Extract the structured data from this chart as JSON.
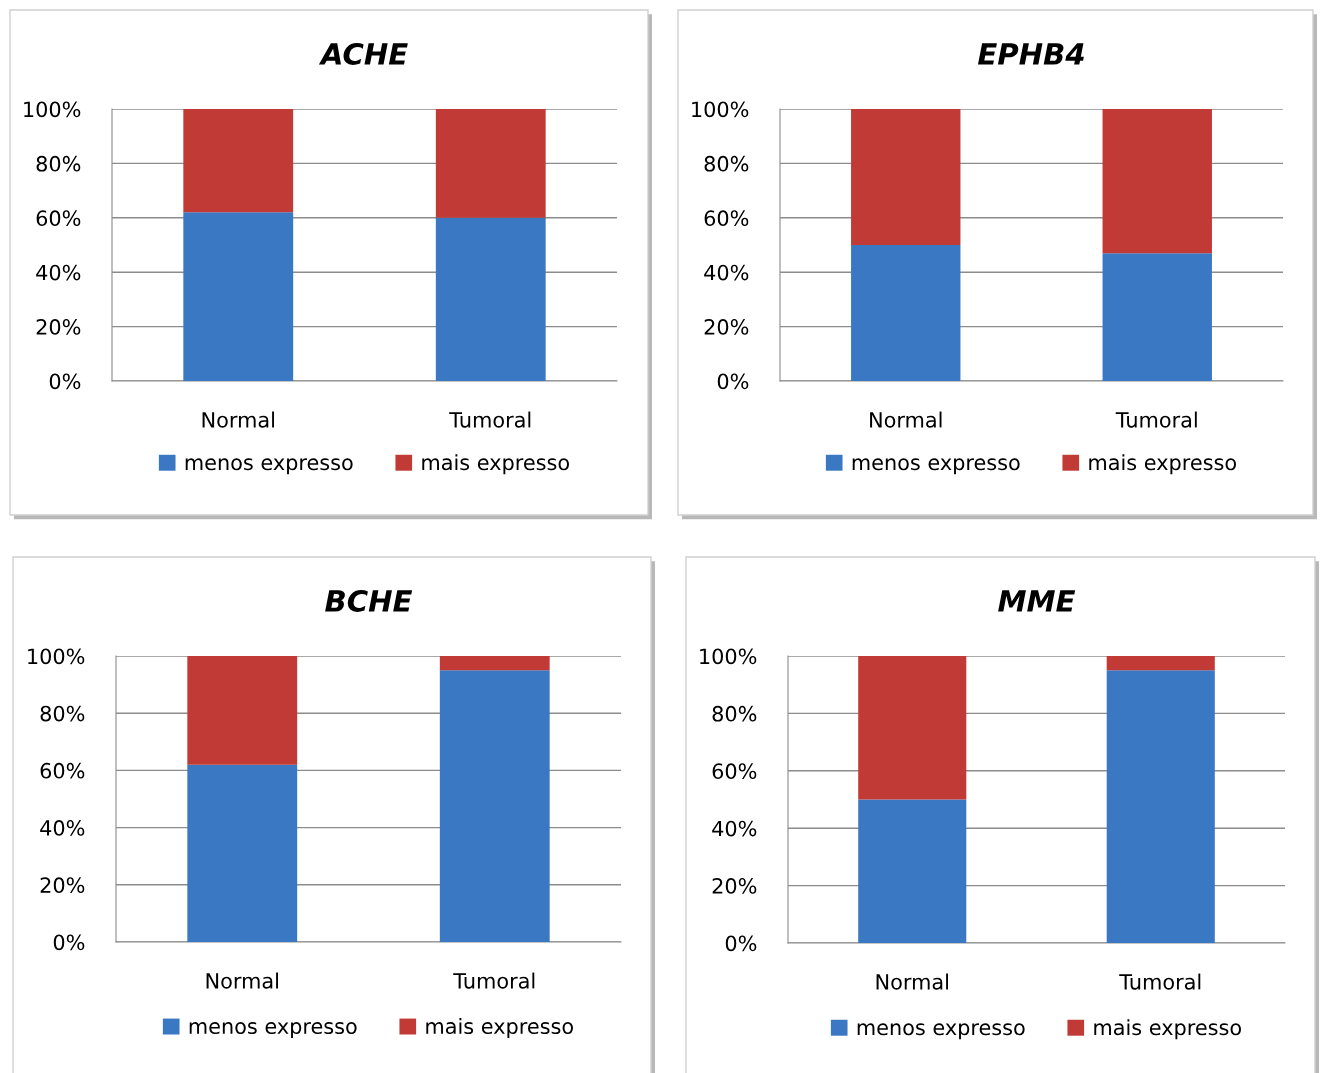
{
  "chart_data": [
    {
      "type": "bar",
      "stacked": true,
      "title": "ACHE",
      "categories": [
        "Normal",
        "Tumoral"
      ],
      "ylim": [
        0,
        100
      ],
      "yticks": [
        {
          "value": 0,
          "label": "0%"
        },
        {
          "value": 20,
          "label": "20%"
        },
        {
          "value": 40,
          "label": "40%"
        },
        {
          "value": 60,
          "label": "60%"
        },
        {
          "value": 80,
          "label": "80%"
        },
        {
          "value": 100,
          "label": "100%"
        }
      ],
      "grid": "y",
      "legend": "bottom",
      "series": [
        {
          "name": "menos expresso",
          "color": "#3a78c4",
          "values": [
            62,
            60
          ]
        },
        {
          "name": "mais expresso",
          "color": "#c23a35",
          "values": [
            38,
            40
          ]
        }
      ]
    },
    {
      "type": "bar",
      "stacked": true,
      "title": "EPHB4",
      "categories": [
        "Normal",
        "Tumoral"
      ],
      "ylim": [
        0,
        100
      ],
      "yticks": [
        {
          "value": 0,
          "label": "0%"
        },
        {
          "value": 20,
          "label": "20%"
        },
        {
          "value": 40,
          "label": "40%"
        },
        {
          "value": 60,
          "label": "60%"
        },
        {
          "value": 80,
          "label": "80%"
        },
        {
          "value": 100,
          "label": "100%"
        }
      ],
      "grid": "y",
      "legend": "bottom",
      "series": [
        {
          "name": "menos expresso",
          "color": "#3a78c4",
          "values": [
            50,
            47
          ]
        },
        {
          "name": "mais expresso",
          "color": "#c23a35",
          "values": [
            50,
            53
          ]
        }
      ]
    },
    {
      "type": "bar",
      "stacked": true,
      "title": "BCHE",
      "categories": [
        "Normal",
        "Tumoral"
      ],
      "ylim": [
        0,
        100
      ],
      "yticks": [
        {
          "value": 0,
          "label": "0%"
        },
        {
          "value": 20,
          "label": "20%"
        },
        {
          "value": 40,
          "label": "40%"
        },
        {
          "value": 60,
          "label": "60%"
        },
        {
          "value": 80,
          "label": "80%"
        },
        {
          "value": 100,
          "label": "100%"
        }
      ],
      "grid": "y",
      "legend": "bottom",
      "series": [
        {
          "name": "menos expresso",
          "color": "#3a78c4",
          "values": [
            62,
            95
          ]
        },
        {
          "name": "mais expresso",
          "color": "#c23a35",
          "values": [
            38,
            5
          ]
        }
      ]
    },
    {
      "type": "bar",
      "stacked": true,
      "title": "MME",
      "categories": [
        "Normal",
        "Tumoral"
      ],
      "ylim": [
        0,
        100
      ],
      "yticks": [
        {
          "value": 0,
          "label": "0%"
        },
        {
          "value": 20,
          "label": "20%"
        },
        {
          "value": 40,
          "label": "40%"
        },
        {
          "value": 60,
          "label": "60%"
        },
        {
          "value": 80,
          "label": "80%"
        },
        {
          "value": 100,
          "label": "100%"
        }
      ],
      "grid": "y",
      "legend": "bottom",
      "series": [
        {
          "name": "menos expresso",
          "color": "#3a78c4",
          "values": [
            50,
            95
          ]
        },
        {
          "name": "mais expresso",
          "color": "#c23a35",
          "values": [
            50,
            5
          ]
        }
      ]
    }
  ]
}
